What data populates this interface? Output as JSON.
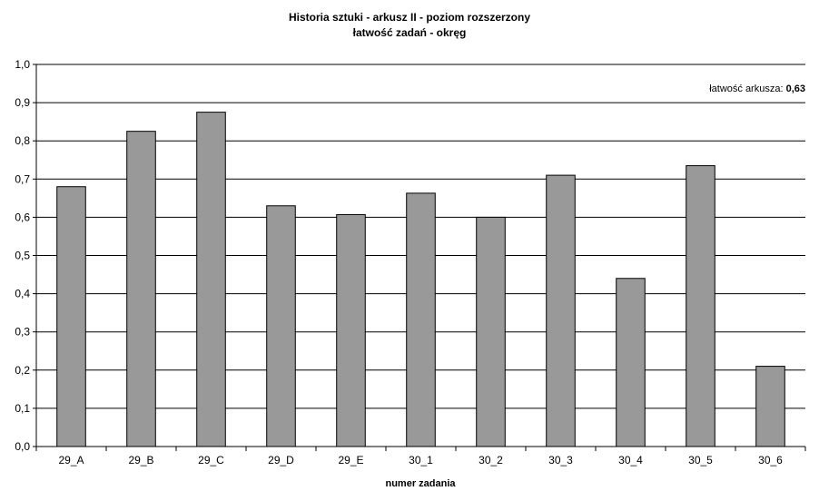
{
  "chart_data": {
    "type": "bar",
    "title": "Historia sztuki - arkusz II - poziom rozszerzony",
    "subtitle": "łatwość zadań - okręg",
    "xlabel": "numer zadania",
    "ylabel": "",
    "ylim": [
      0,
      1
    ],
    "yticks": [
      "0,0",
      "0,1",
      "0,2",
      "0,3",
      "0,4",
      "0,5",
      "0,6",
      "0,7",
      "0,8",
      "0,9",
      "1,0"
    ],
    "categories": [
      "29_A",
      "29_B",
      "29_C",
      "29_D",
      "29_E",
      "30_1",
      "30_2",
      "30_3",
      "30_4",
      "30_5",
      "30_6"
    ],
    "values": [
      0.68,
      0.825,
      0.875,
      0.63,
      0.607,
      0.663,
      0.6,
      0.71,
      0.44,
      0.735,
      0.21
    ],
    "annotation": {
      "label": "łatwość arkusza: ",
      "value": "0,63"
    },
    "grid": true,
    "legend": "none",
    "colors": {
      "bar": "#999999",
      "bar_stroke": "#000000",
      "grid": "#000000",
      "background": "#ffffff"
    }
  }
}
